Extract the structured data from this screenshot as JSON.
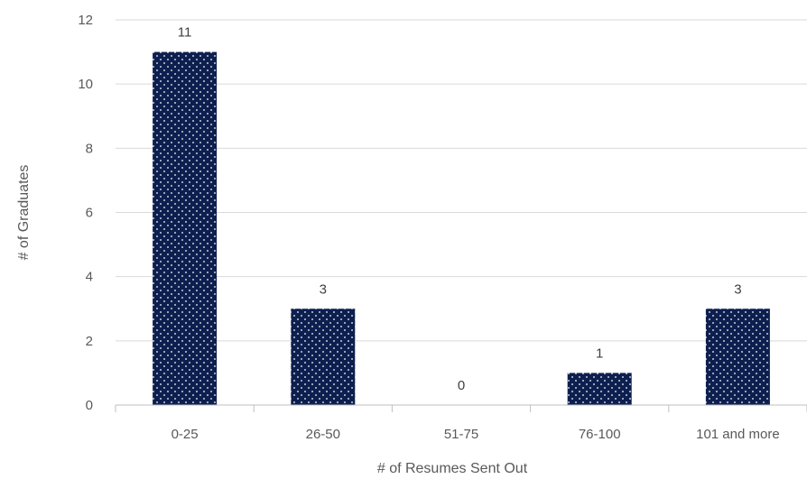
{
  "chart_data": {
    "type": "bar",
    "categories": [
      "0-25",
      "26-50",
      "51-75",
      "76-100",
      "101 and more"
    ],
    "values": [
      11,
      3,
      0,
      1,
      3
    ],
    "title": "",
    "xlabel": "# of Resumes Sent Out",
    "ylabel": "# of Graduates",
    "ylim": [
      0,
      12
    ],
    "yticks": [
      0,
      2,
      4,
      6,
      8,
      10,
      12
    ],
    "grid": true,
    "legend": "none",
    "data_labels": true,
    "colors": {
      "bar_fill": "#0d1f4f",
      "bar_pattern": "white dots",
      "grid": "#d9d9d9",
      "axis": "#bfbfbf",
      "text": "#595959"
    }
  }
}
